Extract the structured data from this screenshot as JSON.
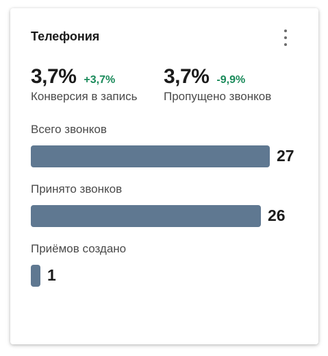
{
  "card": {
    "title": "Телефония",
    "menu_icon": "more-vertical-icon"
  },
  "metrics": [
    {
      "value": "3,7%",
      "delta": "+3,7%",
      "delta_color": "#1a8a5a",
      "label": "Конверсия в запись"
    },
    {
      "value": "3,7%",
      "delta": "-9,9%",
      "delta_color": "#1a8a5a",
      "label": "Пропущено звонков"
    }
  ],
  "bars": {
    "bar_color": "#5f7891",
    "max_value": 27,
    "items": [
      {
        "label": "Всего звонков",
        "value": 27,
        "value_text": "27"
      },
      {
        "label": "Принято звонков",
        "value": 26,
        "value_text": "26"
      },
      {
        "label": "Приёмов создано",
        "value": 1,
        "value_text": "1"
      }
    ]
  }
}
